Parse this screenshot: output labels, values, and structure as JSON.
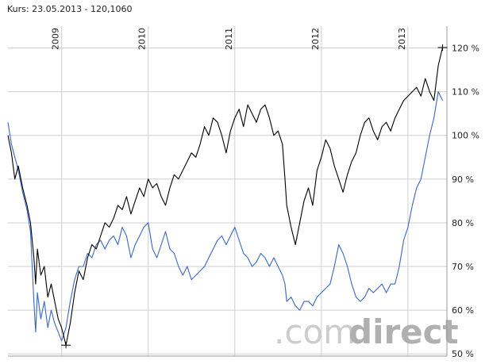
{
  "header": {
    "kurs_label": "Kurs:",
    "kurs_value": "23.05.2013 - 120,1060"
  },
  "watermark": {
    "part1": ".com",
    "part2": "direct"
  },
  "colors": {
    "primary": "#000000",
    "comparison": "#3a66c2",
    "grid": "#cfcfcf"
  },
  "chart_data": {
    "type": "line",
    "title": "",
    "xlabel": "",
    "ylabel": "",
    "x_unit": "year",
    "xlim": [
      2008.38,
      2013.45
    ],
    "ylim": [
      49.5,
      125
    ],
    "y_ticks": [
      50,
      60,
      70,
      80,
      90,
      100,
      110,
      120
    ],
    "y_tick_labels": [
      "50 %",
      "60 %",
      "70 %",
      "80 %",
      "90 %",
      "100 %",
      "110 %",
      "120 %"
    ],
    "x_ticks": [
      2009,
      2010,
      2011,
      2012,
      2013
    ],
    "x_tick_labels": [
      "2009",
      "2010",
      "2011",
      "2012",
      "2013"
    ],
    "grid": true,
    "series": [
      {
        "color": "#000000",
        "x": [
          2008.38,
          2008.42,
          2008.46,
          2008.5,
          2008.55,
          2008.6,
          2008.64,
          2008.68,
          2008.7,
          2008.72,
          2008.76,
          2008.8,
          2008.84,
          2008.88,
          2008.92,
          2008.96,
          2009.0,
          2009.05,
          2009.1,
          2009.15,
          2009.2,
          2009.25,
          2009.3,
          2009.35,
          2009.4,
          2009.45,
          2009.5,
          2009.55,
          2009.6,
          2009.65,
          2009.7,
          2009.75,
          2009.8,
          2009.85,
          2009.9,
          2009.95,
          2010.0,
          2010.05,
          2010.1,
          2010.15,
          2010.2,
          2010.25,
          2010.3,
          2010.35,
          2010.4,
          2010.45,
          2010.5,
          2010.55,
          2010.6,
          2010.65,
          2010.7,
          2010.75,
          2010.8,
          2010.85,
          2010.9,
          2010.95,
          2011.0,
          2011.05,
          2011.1,
          2011.15,
          2011.2,
          2011.25,
          2011.3,
          2011.35,
          2011.4,
          2011.45,
          2011.5,
          2011.55,
          2011.58,
          2011.6,
          2011.65,
          2011.7,
          2011.75,
          2011.8,
          2011.85,
          2011.9,
          2011.95,
          2012.0,
          2012.05,
          2012.1,
          2012.15,
          2012.2,
          2012.25,
          2012.3,
          2012.35,
          2012.4,
          2012.45,
          2012.5,
          2012.55,
          2012.6,
          2012.65,
          2012.7,
          2012.75,
          2012.8,
          2012.85,
          2012.9,
          2012.95,
          2013.0,
          2013.05,
          2013.1,
          2013.15,
          2013.2,
          2013.25,
          2013.3,
          2013.35,
          2013.4
        ],
        "values": [
          100,
          96,
          90,
          93,
          88,
          84,
          80,
          72,
          66,
          74,
          68,
          70,
          63,
          66,
          62,
          58,
          56,
          52,
          57,
          64,
          69,
          67,
          72,
          75,
          74,
          77,
          80,
          79,
          81,
          84,
          83,
          86,
          82,
          85,
          88,
          86,
          90,
          88,
          89,
          86,
          84,
          88,
          91,
          90,
          92,
          94,
          96,
          95,
          98,
          102,
          100,
          104,
          103,
          100,
          96,
          101,
          104,
          106,
          102,
          107,
          105,
          103,
          106,
          107,
          104,
          100,
          101,
          98,
          90,
          84,
          79,
          75,
          80,
          85,
          88,
          84,
          92,
          95,
          99,
          97,
          93,
          90,
          87,
          91,
          94,
          96,
          100,
          103,
          104,
          101,
          99,
          102,
          103,
          101,
          104,
          106,
          108,
          109,
          110,
          111,
          109,
          113,
          110,
          108,
          116,
          120.106
        ]
      },
      {
        "color": "#3a66c2",
        "x": [
          2008.38,
          2008.42,
          2008.46,
          2008.5,
          2008.55,
          2008.6,
          2008.64,
          2008.68,
          2008.7,
          2008.72,
          2008.76,
          2008.8,
          2008.84,
          2008.88,
          2008.92,
          2008.96,
          2009.0,
          2009.05,
          2009.1,
          2009.15,
          2009.2,
          2009.25,
          2009.3,
          2009.35,
          2009.4,
          2009.45,
          2009.5,
          2009.55,
          2009.6,
          2009.65,
          2009.7,
          2009.75,
          2009.8,
          2009.85,
          2009.9,
          2009.95,
          2010.0,
          2010.05,
          2010.1,
          2010.15,
          2010.2,
          2010.25,
          2010.3,
          2010.35,
          2010.4,
          2010.45,
          2010.5,
          2010.55,
          2010.6,
          2010.65,
          2010.7,
          2010.75,
          2010.8,
          2010.85,
          2010.9,
          2010.95,
          2011.0,
          2011.05,
          2011.1,
          2011.15,
          2011.2,
          2011.25,
          2011.3,
          2011.35,
          2011.4,
          2011.45,
          2011.5,
          2011.55,
          2011.58,
          2011.6,
          2011.65,
          2011.7,
          2011.75,
          2011.8,
          2011.85,
          2011.9,
          2011.95,
          2012.0,
          2012.05,
          2012.1,
          2012.15,
          2012.2,
          2012.25,
          2012.3,
          2012.35,
          2012.4,
          2012.45,
          2012.5,
          2012.55,
          2012.6,
          2012.65,
          2012.7,
          2012.75,
          2012.8,
          2012.85,
          2012.9,
          2012.95,
          2013.0,
          2013.05,
          2013.1,
          2013.15,
          2013.2,
          2013.25,
          2013.3,
          2013.35,
          2013.4
        ],
        "values": [
          103,
          98,
          95,
          92,
          87,
          83,
          78,
          62,
          55,
          64,
          58,
          62,
          56,
          60,
          57,
          55,
          53,
          56,
          62,
          67,
          70,
          70,
          73,
          72,
          75,
          76,
          74,
          76,
          77,
          75,
          79,
          77,
          72,
          75,
          77,
          79,
          80,
          74,
          72,
          75,
          78,
          74,
          73,
          70,
          68,
          70,
          67,
          68,
          69,
          70,
          72,
          74,
          76,
          77,
          75,
          77,
          79,
          76,
          73,
          72,
          70,
          71,
          73,
          72,
          70,
          72,
          70,
          68,
          66,
          62,
          63,
          61,
          60,
          62,
          62,
          61,
          63,
          64,
          65,
          66,
          70,
          75,
          73,
          70,
          66,
          63,
          62,
          63,
          65,
          64,
          65,
          66,
          64,
          66,
          66,
          70,
          76,
          79,
          84,
          88,
          90,
          95,
          100,
          104,
          110,
          108
        ]
      }
    ]
  }
}
